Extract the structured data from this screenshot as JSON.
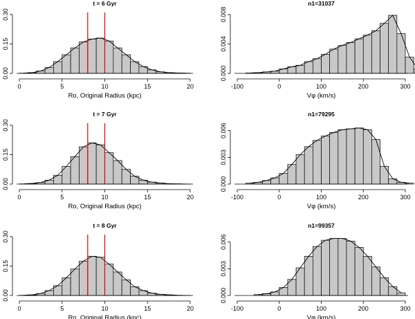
{
  "chart_data": [
    {
      "type": "bar",
      "title": "t = 6 Gyr",
      "xlabel": "Ro, Original Radius (kpc)",
      "ylabel": "",
      "xlim": [
        0,
        20
      ],
      "ylim": [
        0,
        0.3
      ],
      "xticks": [
        0,
        5,
        10,
        15,
        20
      ],
      "yticks": [
        0.0,
        0.15,
        0.3
      ],
      "ytick_labels": [
        "0.00",
        "0.15",
        "0.30"
      ],
      "bin_start": 0,
      "bin_width": 1,
      "values": [
        0.001,
        0.004,
        0.012,
        0.03,
        0.06,
        0.095,
        0.13,
        0.16,
        0.175,
        0.18,
        0.165,
        0.13,
        0.095,
        0.06,
        0.035,
        0.018,
        0.008,
        0.004,
        0.002,
        0.001
      ],
      "reference_lines": [
        8,
        10
      ],
      "reference_color": "#e00000"
    },
    {
      "type": "bar",
      "title": "n1=31037",
      "xlabel": "Vφ (km/s)",
      "ylabel": "",
      "xlim": [
        -100,
        300
      ],
      "ylim": [
        0,
        0.008
      ],
      "xticks": [
        -100,
        0,
        100,
        200,
        300
      ],
      "yticks": [
        0.0,
        0.004,
        0.008
      ],
      "ytick_labels": [
        "0.000",
        "0.004",
        "0.008"
      ],
      "bin_start": -80,
      "bin_width": 20,
      "values": [
        5e-05,
        0.0001,
        0.0002,
        0.0003,
        0.0006,
        0.0009,
        0.0011,
        0.0016,
        0.002,
        0.0026,
        0.0033,
        0.0038,
        0.0042,
        0.0047,
        0.0052,
        0.0058,
        0.0068,
        0.0079,
        0.0054,
        0.0022,
        0.0006,
        0.0002
      ],
      "reference_lines": []
    },
    {
      "type": "bar",
      "title": "t = 7 Gyr",
      "xlabel": "Ro, Original Radius (kpc)",
      "ylabel": "",
      "xlim": [
        0,
        20
      ],
      "ylim": [
        0,
        0.3
      ],
      "xticks": [
        0,
        5,
        10,
        15,
        20
      ],
      "yticks": [
        0.0,
        0.15,
        0.3
      ],
      "ytick_labels": [
        "0.00",
        "0.15",
        "0.30"
      ],
      "bin_start": 0,
      "bin_width": 1,
      "values": [
        0.001,
        0.003,
        0.008,
        0.02,
        0.045,
        0.09,
        0.14,
        0.19,
        0.21,
        0.2,
        0.16,
        0.12,
        0.075,
        0.04,
        0.02,
        0.01,
        0.005,
        0.002,
        0.001,
        0.0005
      ],
      "reference_lines": [
        8,
        10
      ],
      "reference_color": "#e00000"
    },
    {
      "type": "bar",
      "title": "n1=79295",
      "xlabel": "Vφ (km/s)",
      "ylabel": "",
      "xlim": [
        -100,
        300
      ],
      "ylim": [
        0,
        0.0066
      ],
      "xticks": [
        -100,
        0,
        100,
        200,
        300
      ],
      "yticks": [
        0.0,
        0.003,
        0.006
      ],
      "ytick_labels": [
        "0.000",
        "0.003",
        "0.006"
      ],
      "bin_start": -80,
      "bin_width": 20,
      "values": [
        0.0001,
        0.0002,
        0.0004,
        0.0007,
        0.0012,
        0.0022,
        0.0033,
        0.0042,
        0.0049,
        0.0054,
        0.0058,
        0.0061,
        0.0062,
        0.0063,
        0.0061,
        0.005,
        0.002,
        0.0006,
        0.0002,
        0.0001
      ],
      "reference_lines": []
    },
    {
      "type": "bar",
      "title": "t = 8 Gyr",
      "xlabel": "Ro, Original Radius (kpc)",
      "ylabel": "",
      "xlim": [
        0,
        20
      ],
      "ylim": [
        0,
        0.3
      ],
      "xticks": [
        0,
        5,
        10,
        15,
        20
      ],
      "yticks": [
        0.0,
        0.15,
        0.3
      ],
      "ytick_labels": [
        "0.00",
        "0.15",
        "0.30"
      ],
      "bin_start": 0,
      "bin_width": 1,
      "values": [
        0.001,
        0.003,
        0.01,
        0.025,
        0.05,
        0.09,
        0.135,
        0.175,
        0.2,
        0.195,
        0.16,
        0.12,
        0.08,
        0.045,
        0.025,
        0.012,
        0.006,
        0.003,
        0.001,
        0.0005
      ],
      "reference_lines": [
        8,
        10
      ],
      "reference_color": "#e00000"
    },
    {
      "type": "bar",
      "title": "n1=99357",
      "xlabel": "Vφ (km/s)",
      "ylabel": "",
      "xlim": [
        -100,
        300
      ],
      "ylim": [
        0,
        0.0066
      ],
      "xticks": [
        -100,
        0,
        100,
        200,
        300
      ],
      "yticks": [
        0.0,
        0.003,
        0.006
      ],
      "ytick_labels": [
        "0.000",
        "0.003",
        "0.006"
      ],
      "bin_start": -60,
      "bin_width": 20,
      "values": [
        0.0001,
        0.0002,
        0.0004,
        0.0009,
        0.0018,
        0.0031,
        0.0044,
        0.0055,
        0.0062,
        0.0064,
        0.0064,
        0.0061,
        0.0054,
        0.0044,
        0.0032,
        0.002,
        0.001,
        0.0003
      ],
      "reference_lines": []
    }
  ]
}
